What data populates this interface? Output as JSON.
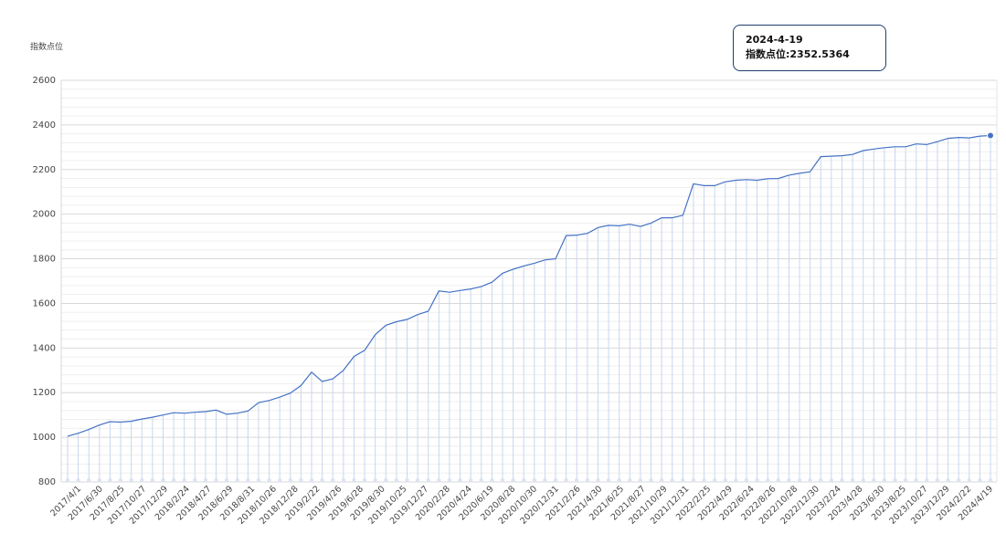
{
  "chart_data": {
    "type": "line",
    "ylabel": "指数点位",
    "ylim": [
      800,
      2600
    ],
    "yticks": [
      800,
      1000,
      1200,
      1400,
      1600,
      1800,
      2000,
      2200,
      2400,
      2600
    ],
    "grid": true,
    "line_color": "#4472c4",
    "drop_line_color": "#c9d6ee",
    "x_tick_labels": [
      "2017/4/1",
      "2017/6/30",
      "2017/8/25",
      "2017/10/27",
      "2017/12/29",
      "2018/2/24",
      "2018/4/27",
      "2018/6/29",
      "2018/8/31",
      "2018/10/26",
      "2018/12/28",
      "2019/2/22",
      "2019/4/26",
      "2019/6/28",
      "2019/8/30",
      "2019/10/25",
      "2019/12/27",
      "2020/2/28",
      "2020/4/24",
      "2020/6/19",
      "2020/8/28",
      "2020/10/30",
      "2020/12/31",
      "2021/2/26",
      "2021/4/30",
      "2021/6/25",
      "2021/8/27",
      "2021/10/29",
      "2021/12/31",
      "2022/2/25",
      "2022/4/29",
      "2022/6/24",
      "2022/8/26",
      "2022/10/28",
      "2022/12/30",
      "2023/2/24",
      "2023/4/28",
      "2023/6/30",
      "2023/8/25",
      "2023/10/27",
      "2023/12/29",
      "2024/2/22",
      "2024/4/19"
    ],
    "values": [
      1005,
      1018,
      1035,
      1055,
      1070,
      1068,
      1072,
      1082,
      1090,
      1100,
      1110,
      1108,
      1112,
      1115,
      1122,
      1103,
      1108,
      1118,
      1155,
      1165,
      1180,
      1198,
      1232,
      1292,
      1250,
      1262,
      1300,
      1362,
      1390,
      1460,
      1502,
      1518,
      1528,
      1550,
      1565,
      1656,
      1650,
      1658,
      1665,
      1676,
      1695,
      1735,
      1753,
      1768,
      1780,
      1795,
      1800,
      1904,
      1906,
      1914,
      1940,
      1950,
      1948,
      1955,
      1945,
      1960,
      1984,
      1984,
      1995,
      2136,
      2128,
      2128,
      2145,
      2152,
      2155,
      2152,
      2159,
      2160,
      2175,
      2183,
      2190,
      2258,
      2260,
      2262,
      2268,
      2285,
      2292,
      2298,
      2302,
      2302,
      2315,
      2312,
      2325,
      2340,
      2344,
      2342,
      2350,
      2352.5364
    ],
    "highlight": {
      "index": 87,
      "date": "2024-4-19",
      "label": "指数点位:2352.5364"
    }
  },
  "tooltip": {
    "date": "2024-4-19",
    "value_text": "指数点位:2352.5364"
  }
}
